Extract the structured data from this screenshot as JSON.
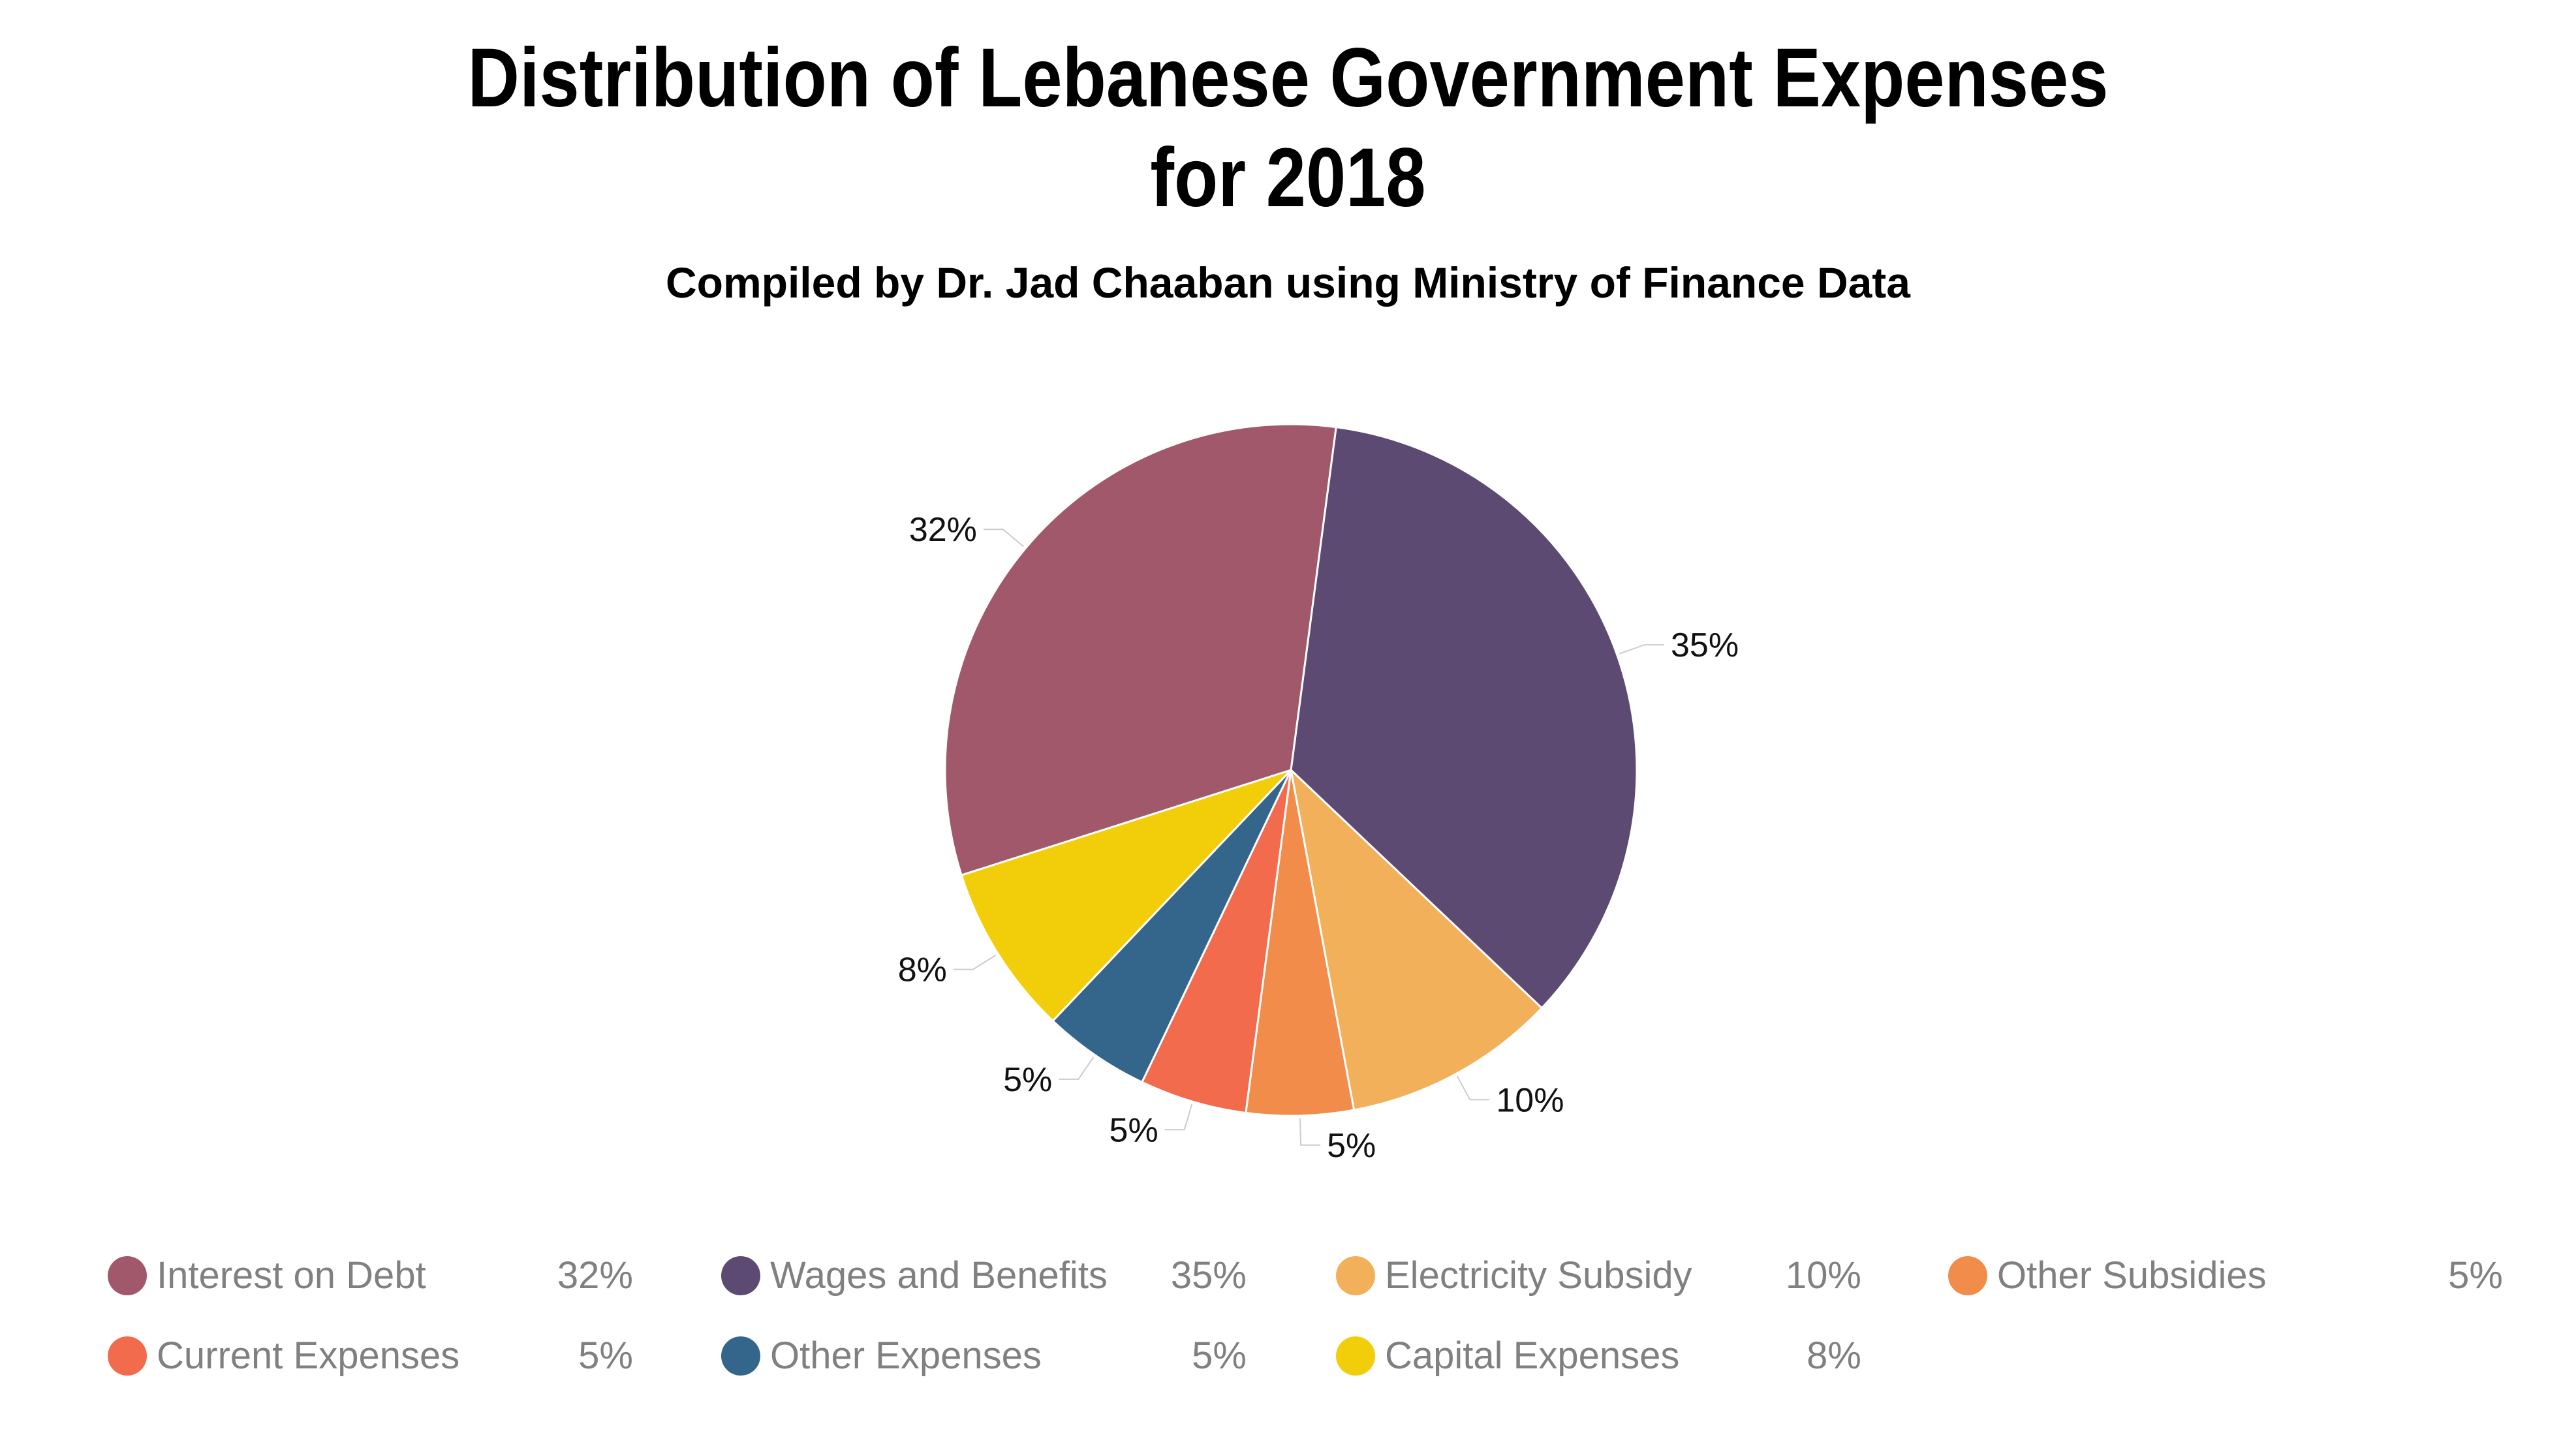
{
  "chart_data": {
    "type": "pie",
    "title_lines": [
      "Distribution of Lebanese Government Expenses",
      "for 2018"
    ],
    "subtitle": "Compiled by Dr. Jad Chaaban using Ministry of Finance Data",
    "series": [
      {
        "name": "Wages and Benefits",
        "value": 35,
        "label": "35%",
        "color": "#5c4a72"
      },
      {
        "name": "Electricity Subsidy",
        "value": 10,
        "label": "10%",
        "color": "#f2b05b"
      },
      {
        "name": "Other Subsidies",
        "value": 5,
        "label": "5%",
        "color": "#f28c4b"
      },
      {
        "name": "Current Expenses",
        "value": 5,
        "label": "5%",
        "color": "#f26b4d"
      },
      {
        "name": "Other Expenses",
        "value": 5,
        "label": "5%",
        "color": "#34658a"
      },
      {
        "name": "Capital Expenses",
        "value": 8,
        "label": "8%",
        "color": "#f2cd0a"
      },
      {
        "name": "Interest on Debt",
        "value": 32,
        "label": "32%",
        "color": "#a1586a"
      }
    ],
    "legend": [
      [
        "Interest on Debt",
        "Wages and Benefits",
        "Electricity Subsidy",
        "Other Subsidies"
      ],
      [
        "Current Expenses",
        "Other Expenses",
        "Capital Expenses"
      ]
    ],
    "legend_position": "bottom"
  }
}
